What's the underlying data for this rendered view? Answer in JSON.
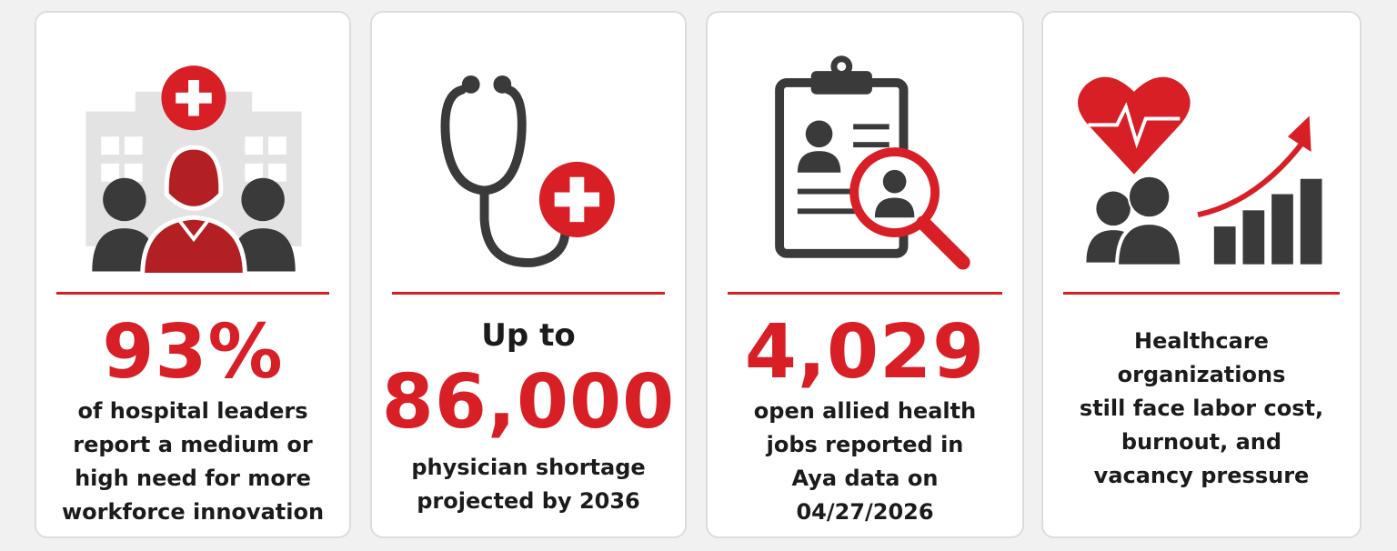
{
  "colors": {
    "accent": "#d81f26",
    "dark": "#3a3a3a",
    "building": "#e3e3e3"
  },
  "cards": [
    {
      "icon": "hospital-leaders-icon",
      "stat": "93%",
      "desc": [
        "of hospital leaders",
        "report a medium or",
        "high need for more",
        "workforce innovation"
      ]
    },
    {
      "icon": "stethoscope-icon",
      "lead": "Up to",
      "stat": "86,000",
      "desc": [
        "physician shortage",
        "projected by 2036"
      ]
    },
    {
      "icon": "clipboard-search-icon",
      "stat": "4,029",
      "desc": [
        "open allied health",
        "jobs reported in",
        "Aya data on",
        "04/27/2026"
      ]
    },
    {
      "icon": "heart-growth-chart-icon",
      "desc": [
        "Healthcare",
        "organizations",
        "still face labor cost,",
        "burnout, and",
        "vacancy pressure"
      ]
    }
  ]
}
